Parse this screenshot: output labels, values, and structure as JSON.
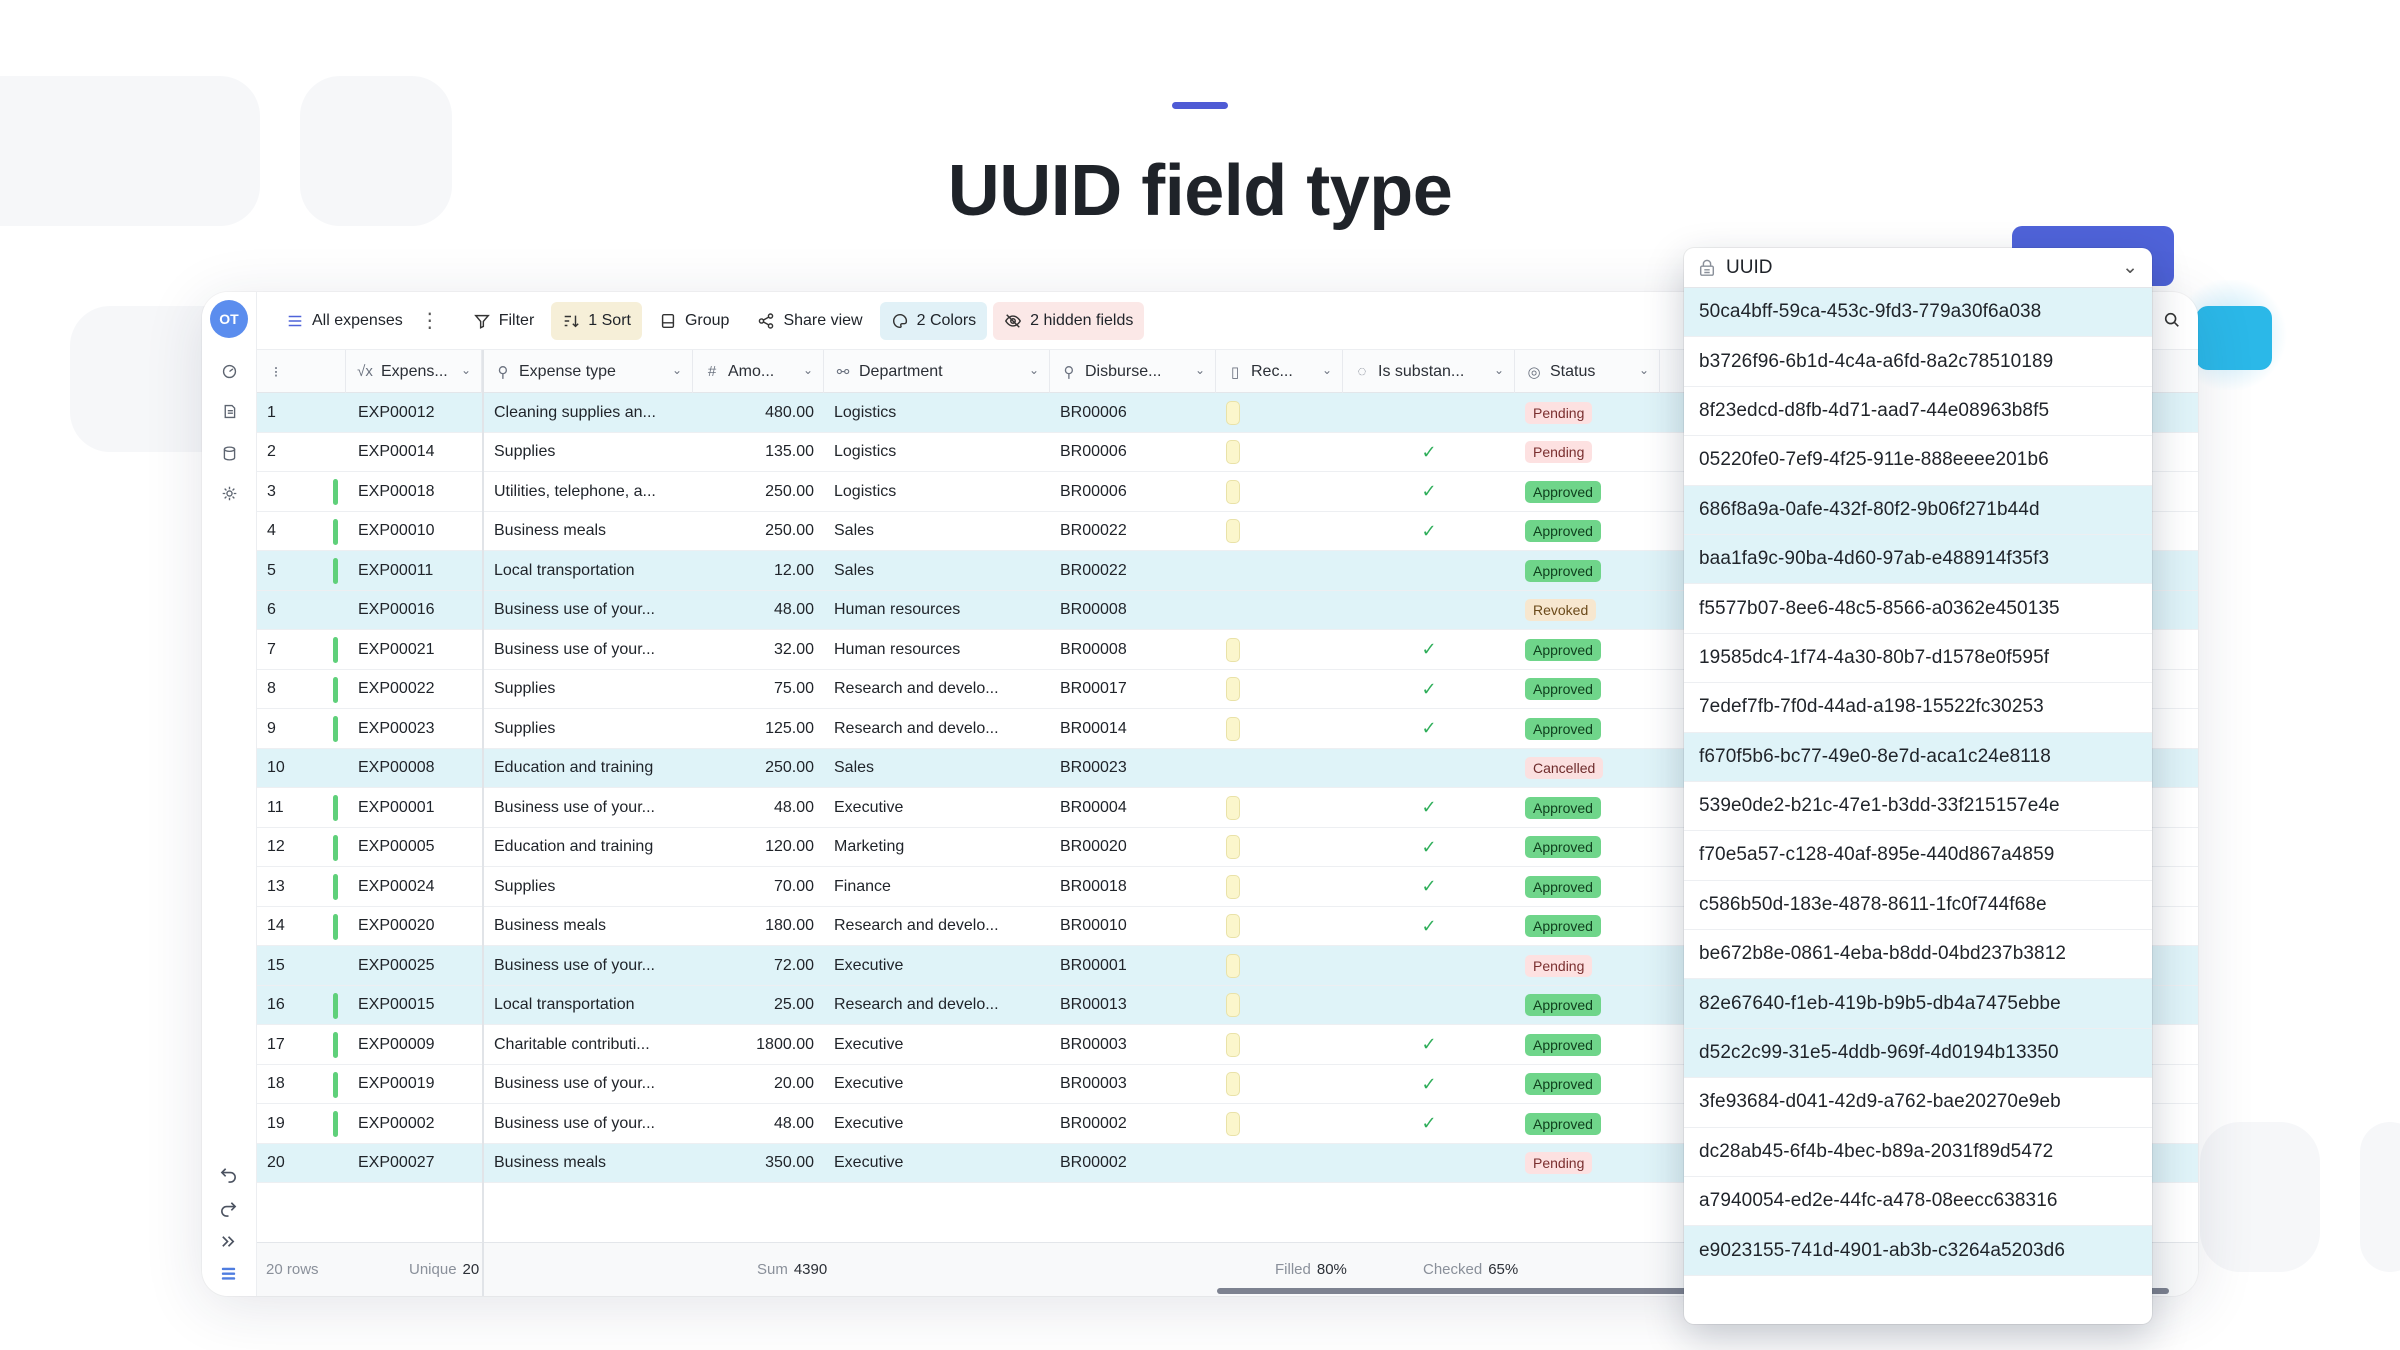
{
  "page": {
    "title": "UUID field type"
  },
  "toolbar": {
    "avatar_initials": "OT",
    "view_name": "All expenses",
    "filter": "Filter",
    "sort": "1 Sort",
    "group": "Group",
    "share": "Share view",
    "colors": "2 Colors",
    "hidden_fields": "2 hidden fields"
  },
  "columns": {
    "expense": "Expens...",
    "expense_type": "Expense type",
    "amount": "Amo...",
    "department": "Department",
    "disburse": "Disburse...",
    "receipt": "Rec...",
    "substantiated": "Is substan...",
    "status": "Status"
  },
  "rows": [
    {
      "n": "1",
      "id": "EXP00012",
      "type": "Cleaning supplies an...",
      "amount": "480.00",
      "dept": "Logistics",
      "disb": "BR00006",
      "rec": true,
      "check": false,
      "status": "Pending",
      "hl": true,
      "bar": false
    },
    {
      "n": "2",
      "id": "EXP00014",
      "type": "Supplies",
      "amount": "135.00",
      "dept": "Logistics",
      "disb": "BR00006",
      "rec": true,
      "check": true,
      "status": "Pending",
      "hl": false,
      "bar": false
    },
    {
      "n": "3",
      "id": "EXP00018",
      "type": "Utilities, telephone, a...",
      "amount": "250.00",
      "dept": "Logistics",
      "disb": "BR00006",
      "rec": true,
      "check": true,
      "status": "Approved",
      "hl": false,
      "bar": true
    },
    {
      "n": "4",
      "id": "EXP00010",
      "type": "Business meals",
      "amount": "250.00",
      "dept": "Sales",
      "disb": "BR00022",
      "rec": true,
      "check": true,
      "status": "Approved",
      "hl": false,
      "bar": true
    },
    {
      "n": "5",
      "id": "EXP00011",
      "type": "Local transportation",
      "amount": "12.00",
      "dept": "Sales",
      "disb": "BR00022",
      "rec": false,
      "check": false,
      "status": "Approved",
      "hl": true,
      "bar": true
    },
    {
      "n": "6",
      "id": "EXP00016",
      "type": "Business use of your...",
      "amount": "48.00",
      "dept": "Human resources",
      "disb": "BR00008",
      "rec": false,
      "check": false,
      "status": "Revoked",
      "hl": true,
      "bar": false
    },
    {
      "n": "7",
      "id": "EXP00021",
      "type": "Business use of your...",
      "amount": "32.00",
      "dept": "Human resources",
      "disb": "BR00008",
      "rec": true,
      "check": true,
      "status": "Approved",
      "hl": false,
      "bar": true
    },
    {
      "n": "8",
      "id": "EXP00022",
      "type": "Supplies",
      "amount": "75.00",
      "dept": "Research and develo...",
      "disb": "BR00017",
      "rec": true,
      "check": true,
      "status": "Approved",
      "hl": false,
      "bar": true
    },
    {
      "n": "9",
      "id": "EXP00023",
      "type": "Supplies",
      "amount": "125.00",
      "dept": "Research and develo...",
      "disb": "BR00014",
      "rec": true,
      "check": true,
      "status": "Approved",
      "hl": false,
      "bar": true
    },
    {
      "n": "10",
      "id": "EXP00008",
      "type": "Education and training",
      "amount": "250.00",
      "dept": "Sales",
      "disb": "BR00023",
      "rec": false,
      "check": false,
      "status": "Cancelled",
      "hl": true,
      "bar": false
    },
    {
      "n": "11",
      "id": "EXP00001",
      "type": "Business use of your...",
      "amount": "48.00",
      "dept": "Executive",
      "disb": "BR00004",
      "rec": true,
      "check": true,
      "status": "Approved",
      "hl": false,
      "bar": true
    },
    {
      "n": "12",
      "id": "EXP00005",
      "type": "Education and training",
      "amount": "120.00",
      "dept": "Marketing",
      "disb": "BR00020",
      "rec": true,
      "check": true,
      "status": "Approved",
      "hl": false,
      "bar": true
    },
    {
      "n": "13",
      "id": "EXP00024",
      "type": "Supplies",
      "amount": "70.00",
      "dept": "Finance",
      "disb": "BR00018",
      "rec": true,
      "check": true,
      "status": "Approved",
      "hl": false,
      "bar": true
    },
    {
      "n": "14",
      "id": "EXP00020",
      "type": "Business meals",
      "amount": "180.00",
      "dept": "Research and develo...",
      "disb": "BR00010",
      "rec": true,
      "check": true,
      "status": "Approved",
      "hl": false,
      "bar": true
    },
    {
      "n": "15",
      "id": "EXP00025",
      "type": "Business use of your...",
      "amount": "72.00",
      "dept": "Executive",
      "disb": "BR00001",
      "rec": true,
      "check": false,
      "status": "Pending",
      "hl": true,
      "bar": false
    },
    {
      "n": "16",
      "id": "EXP00015",
      "type": "Local transportation",
      "amount": "25.00",
      "dept": "Research and develo...",
      "disb": "BR00013",
      "rec": true,
      "check": false,
      "status": "Approved",
      "hl": true,
      "bar": true
    },
    {
      "n": "17",
      "id": "EXP00009",
      "type": "Charitable contributi...",
      "amount": "1800.00",
      "dept": "Executive",
      "disb": "BR00003",
      "rec": true,
      "check": true,
      "status": "Approved",
      "hl": false,
      "bar": true
    },
    {
      "n": "18",
      "id": "EXP00019",
      "type": "Business use of your...",
      "amount": "20.00",
      "dept": "Executive",
      "disb": "BR00003",
      "rec": true,
      "check": true,
      "status": "Approved",
      "hl": false,
      "bar": true
    },
    {
      "n": "19",
      "id": "EXP00002",
      "type": "Business use of your...",
      "amount": "48.00",
      "dept": "Executive",
      "disb": "BR00002",
      "rec": true,
      "check": true,
      "status": "Approved",
      "hl": false,
      "bar": true
    },
    {
      "n": "20",
      "id": "EXP00027",
      "type": "Business meals",
      "amount": "350.00",
      "dept": "Executive",
      "disb": "BR00002",
      "rec": false,
      "check": false,
      "status": "Pending",
      "hl": true,
      "bar": false
    }
  ],
  "footer": {
    "rows": "20 rows",
    "unique_label": "Unique",
    "unique_value": "20",
    "sum_label": "Sum",
    "sum_value": "4390",
    "filled_label": "Filled",
    "filled_value": "80%",
    "checked_label": "Checked",
    "checked_value": "65%"
  },
  "uuid_panel": {
    "title": "UUID",
    "items": [
      {
        "v": "50ca4bff-59ca-453c-9fd3-779a30f6a038",
        "hl": true
      },
      {
        "v": "b3726f96-6b1d-4c4a-a6fd-8a2c78510189",
        "hl": false
      },
      {
        "v": "8f23edcd-d8fb-4d71-aad7-44e08963b8f5",
        "hl": false
      },
      {
        "v": "05220fe0-7ef9-4f25-911e-888eeee201b6",
        "hl": false
      },
      {
        "v": "686f8a9a-0afe-432f-80f2-9b06f271b44d",
        "hl": true
      },
      {
        "v": "baa1fa9c-90ba-4d60-97ab-e488914f35f3",
        "hl": true
      },
      {
        "v": "f5577b07-8ee6-48c5-8566-a0362e450135",
        "hl": false
      },
      {
        "v": "19585dc4-1f74-4a30-80b7-d1578e0f595f",
        "hl": false
      },
      {
        "v": "7edef7fb-7f0d-44ad-a198-15522fc30253",
        "hl": false
      },
      {
        "v": "f670f5b6-bc77-49e0-8e7d-aca1c24e8118",
        "hl": true
      },
      {
        "v": "539e0de2-b21c-47e1-b3dd-33f215157e4e",
        "hl": false
      },
      {
        "v": "f70e5a57-c128-40af-895e-440d867a4859",
        "hl": false
      },
      {
        "v": "c586b50d-183e-4878-8611-1fc0f744f68e",
        "hl": false
      },
      {
        "v": "be672b8e-0861-4eba-b8dd-04bd237b3812",
        "hl": false
      },
      {
        "v": "82e67640-f1eb-419b-b9b5-db4a7475ebbe",
        "hl": true
      },
      {
        "v": "d52c2c99-31e5-4ddb-969f-4d0194b13350",
        "hl": true
      },
      {
        "v": "3fe93684-d041-42d9-a762-bae20270e9eb",
        "hl": false
      },
      {
        "v": "dc28ab45-6f4b-4bec-b89a-2031f89d5472",
        "hl": false
      },
      {
        "v": "a7940054-ed2e-44fc-a478-08eecc638316",
        "hl": false
      },
      {
        "v": "e9023155-741d-4901-ab3b-c3264a5203d6",
        "hl": true
      }
    ]
  },
  "colors": {
    "accent": "#4f5bd5",
    "highlight_row": "#dff3f8",
    "approved": "#6fd58a",
    "pending": "#fde1e1"
  }
}
